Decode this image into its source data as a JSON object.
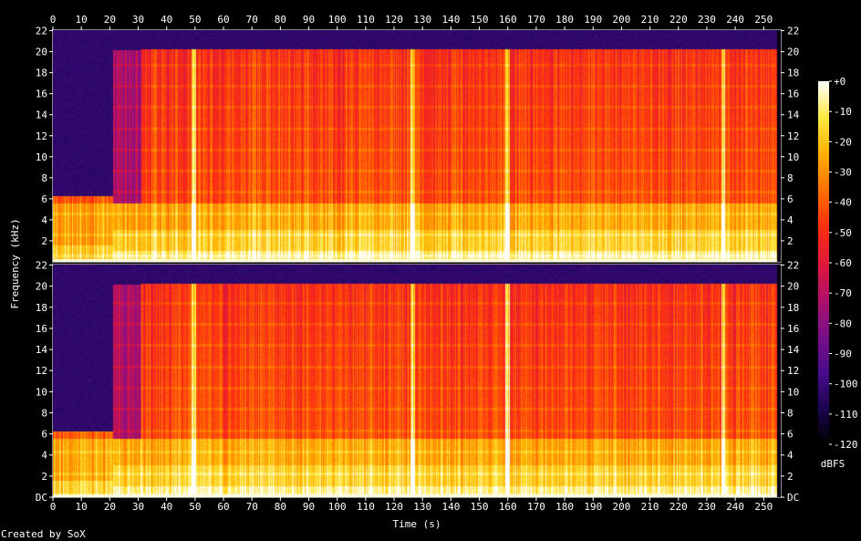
{
  "chart_data": {
    "type": "heatmap",
    "title": "",
    "xlabel": "Time (s)",
    "ylabel": "Frequency (kHz)",
    "colorbar_label": "dBFS",
    "credit": "Created by SoX",
    "xlim": [
      0,
      256
    ],
    "ylim_khz": [
      0,
      22.05
    ],
    "x_ticks": [
      "0",
      "10",
      "20",
      "30",
      "40",
      "50",
      "60",
      "70",
      "80",
      "90",
      "100",
      "110",
      "120",
      "130",
      "140",
      "150",
      "160",
      "170",
      "180",
      "190",
      "200",
      "210",
      "220",
      "230",
      "240",
      "250"
    ],
    "channels": [
      {
        "y_ticks": [
          "22",
          "20",
          "18",
          "16",
          "14",
          "12",
          "10",
          "8",
          "6",
          "4",
          "2"
        ]
      },
      {
        "y_ticks": [
          "22",
          "20",
          "18",
          "16",
          "14",
          "12",
          "10",
          "8",
          "6",
          "4",
          "2",
          "DC"
        ]
      }
    ],
    "colorbar_ticks": [
      "+0",
      "-10",
      "-20",
      "-30",
      "-40",
      "-50",
      "-60",
      "-70",
      "-80",
      "-90",
      "-100",
      "-110",
      "-120"
    ],
    "colorbar_range_db": [
      -120,
      0
    ],
    "colormap": [
      "#000000",
      "#1a0550",
      "#4a0c8c",
      "#7a1088",
      "#b0106a",
      "#e01838",
      "#ff3010",
      "#ff7000",
      "#ffb000",
      "#ffe840",
      "#ffffff"
    ],
    "segments": [
      {
        "start": 0,
        "end": 21,
        "cutoff_khz": 6.2,
        "level": 0.9
      },
      {
        "start": 21,
        "end": 31,
        "cutoff_khz": 20.2,
        "level": 0.55
      },
      {
        "start": 31,
        "end": 255,
        "cutoff_khz": 20.3,
        "level": 0.72
      }
    ],
    "transients_s": [
      49.5,
      126.5,
      160,
      236
    ]
  }
}
